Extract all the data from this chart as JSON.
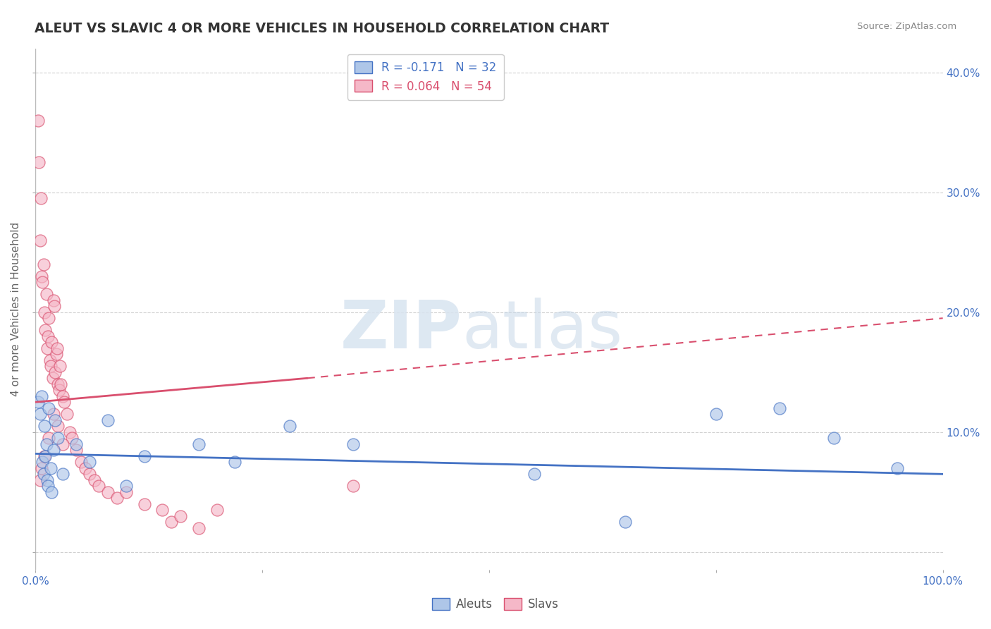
{
  "title": "ALEUT VS SLAVIC 4 OR MORE VEHICLES IN HOUSEHOLD CORRELATION CHART",
  "source": "Source: ZipAtlas.com",
  "xlabel": "",
  "ylabel": "4 or more Vehicles in Household",
  "xlim": [
    0,
    100
  ],
  "ylim": [
    -1.5,
    42
  ],
  "yticks": [
    0,
    10,
    20,
    30,
    40
  ],
  "legend_r1": "R = -0.171",
  "legend_n1": "N = 32",
  "legend_r2": "R = 0.064",
  "legend_n2": "N = 54",
  "legend_label1": "Aleuts",
  "legend_label2": "Slavs",
  "aleut_color": "#aec6e8",
  "slav_color": "#f5b8c8",
  "aleut_line_color": "#4472C4",
  "slav_line_color": "#d94f6e",
  "watermark_zip": "ZIP",
  "watermark_atlas": "atlas",
  "background_color": "#ffffff",
  "grid_color": "#d0d0d0",
  "title_color": "#333333",
  "tick_color": "#4472C4",
  "aleuts_x": [
    0.3,
    0.5,
    0.7,
    0.8,
    0.9,
    1.0,
    1.1,
    1.2,
    1.3,
    1.4,
    1.5,
    1.7,
    1.8,
    2.0,
    2.2,
    2.5,
    3.0,
    4.5,
    6.0,
    8.0,
    10.0,
    12.0,
    18.0,
    22.0,
    28.0,
    35.0,
    55.0,
    65.0,
    75.0,
    82.0,
    88.0,
    95.0
  ],
  "aleuts_y": [
    12.5,
    11.5,
    13.0,
    7.5,
    6.5,
    10.5,
    8.0,
    9.0,
    6.0,
    5.5,
    12.0,
    7.0,
    5.0,
    8.5,
    11.0,
    9.5,
    6.5,
    9.0,
    7.5,
    11.0,
    5.5,
    8.0,
    9.0,
    7.5,
    10.5,
    9.0,
    6.5,
    2.5,
    11.5,
    12.0,
    9.5,
    7.0
  ],
  "slavs_x": [
    0.3,
    0.4,
    0.5,
    0.6,
    0.7,
    0.8,
    0.9,
    1.0,
    1.1,
    1.2,
    1.3,
    1.4,
    1.5,
    1.6,
    1.7,
    1.8,
    1.9,
    2.0,
    2.1,
    2.2,
    2.3,
    2.4,
    2.5,
    2.6,
    2.7,
    2.8,
    3.0,
    3.2,
    3.5,
    3.8,
    4.0,
    4.5,
    5.0,
    5.5,
    6.0,
    6.5,
    7.0,
    8.0,
    9.0,
    10.0,
    12.0,
    14.0,
    15.0,
    16.0,
    18.0,
    20.0,
    0.5,
    0.7,
    1.0,
    1.5,
    2.0,
    2.5,
    3.0,
    35.0
  ],
  "slavs_y": [
    36.0,
    32.5,
    26.0,
    29.5,
    23.0,
    22.5,
    24.0,
    20.0,
    18.5,
    21.5,
    17.0,
    18.0,
    19.5,
    16.0,
    15.5,
    17.5,
    14.5,
    21.0,
    20.5,
    15.0,
    16.5,
    17.0,
    14.0,
    13.5,
    15.5,
    14.0,
    13.0,
    12.5,
    11.5,
    10.0,
    9.5,
    8.5,
    7.5,
    7.0,
    6.5,
    6.0,
    5.5,
    5.0,
    4.5,
    5.0,
    4.0,
    3.5,
    2.5,
    3.0,
    2.0,
    3.5,
    6.0,
    7.0,
    8.0,
    9.5,
    11.5,
    10.5,
    9.0,
    5.5
  ],
  "blue_line_x0": 0,
  "blue_line_x1": 100,
  "blue_line_y0": 8.2,
  "blue_line_y1": 6.5,
  "pink_solid_x0": 0,
  "pink_solid_x1": 30,
  "pink_solid_y0": 12.5,
  "pink_solid_y1": 14.5,
  "pink_dash_x0": 30,
  "pink_dash_x1": 100,
  "pink_dash_y0": 14.5,
  "pink_dash_y1": 19.5
}
